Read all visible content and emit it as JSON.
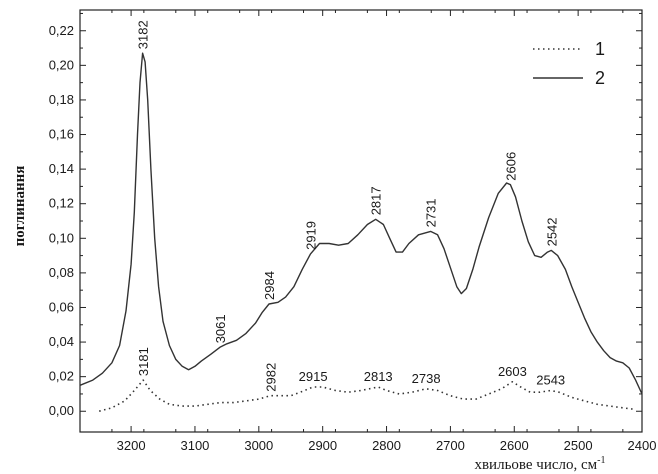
{
  "chart_data": {
    "type": "line",
    "xlabel": "хвильове число, см",
    "xlabel_sup": "-1",
    "ylabel": "поглинання",
    "xlim": [
      3280,
      2400
    ],
    "ylim": [
      -0.012,
      0.232
    ],
    "x_ticks": [
      3200,
      3100,
      3000,
      2900,
      2800,
      2700,
      2600,
      2500,
      2400
    ],
    "y_ticks": [
      0.0,
      0.02,
      0.04,
      0.06,
      0.08,
      0.1,
      0.12,
      0.14,
      0.16,
      0.18,
      0.2,
      0.22
    ],
    "y_tick_labels": [
      "0,00",
      "0,02",
      "0,04",
      "0,06",
      "0,08",
      "0,10",
      "0,12",
      "0,14",
      "0,16",
      "0,18",
      "0,20",
      "0,22"
    ],
    "grid": false,
    "legend_position": "top-right",
    "series": [
      {
        "name": "1",
        "style": "dotted",
        "color": "#333333",
        "points": [
          [
            3250,
            0.0
          ],
          [
            3230,
            0.002
          ],
          [
            3210,
            0.006
          ],
          [
            3195,
            0.012
          ],
          [
            3181,
            0.018
          ],
          [
            3170,
            0.012
          ],
          [
            3155,
            0.007
          ],
          [
            3140,
            0.004
          ],
          [
            3120,
            0.003
          ],
          [
            3100,
            0.003
          ],
          [
            3080,
            0.004
          ],
          [
            3060,
            0.005
          ],
          [
            3040,
            0.005
          ],
          [
            3020,
            0.006
          ],
          [
            3000,
            0.007
          ],
          [
            2982,
            0.009
          ],
          [
            2965,
            0.009
          ],
          [
            2950,
            0.009
          ],
          [
            2935,
            0.011
          ],
          [
            2915,
            0.014
          ],
          [
            2900,
            0.014
          ],
          [
            2880,
            0.012
          ],
          [
            2860,
            0.011
          ],
          [
            2840,
            0.012
          ],
          [
            2813,
            0.014
          ],
          [
            2800,
            0.012
          ],
          [
            2780,
            0.01
          ],
          [
            2760,
            0.011
          ],
          [
            2738,
            0.013
          ],
          [
            2720,
            0.012
          ],
          [
            2700,
            0.009
          ],
          [
            2680,
            0.007
          ],
          [
            2660,
            0.007
          ],
          [
            2640,
            0.01
          ],
          [
            2620,
            0.013
          ],
          [
            2603,
            0.017
          ],
          [
            2590,
            0.014
          ],
          [
            2575,
            0.011
          ],
          [
            2560,
            0.011
          ],
          [
            2543,
            0.012
          ],
          [
            2530,
            0.011
          ],
          [
            2510,
            0.008
          ],
          [
            2490,
            0.006
          ],
          [
            2470,
            0.004
          ],
          [
            2450,
            0.003
          ],
          [
            2430,
            0.002
          ],
          [
            2410,
            0.001
          ]
        ]
      },
      {
        "name": "2",
        "style": "solid",
        "color": "#333333",
        "points": [
          [
            3280,
            0.015
          ],
          [
            3260,
            0.018
          ],
          [
            3245,
            0.022
          ],
          [
            3230,
            0.028
          ],
          [
            3218,
            0.038
          ],
          [
            3208,
            0.058
          ],
          [
            3200,
            0.085
          ],
          [
            3195,
            0.115
          ],
          [
            3190,
            0.16
          ],
          [
            3186,
            0.19
          ],
          [
            3182,
            0.207
          ],
          [
            3178,
            0.202
          ],
          [
            3174,
            0.18
          ],
          [
            3169,
            0.14
          ],
          [
            3163,
            0.1
          ],
          [
            3157,
            0.072
          ],
          [
            3150,
            0.052
          ],
          [
            3140,
            0.038
          ],
          [
            3130,
            0.03
          ],
          [
            3120,
            0.026
          ],
          [
            3110,
            0.024
          ],
          [
            3100,
            0.026
          ],
          [
            3090,
            0.029
          ],
          [
            3075,
            0.033
          ],
          [
            3061,
            0.037
          ],
          [
            3050,
            0.039
          ],
          [
            3035,
            0.041
          ],
          [
            3020,
            0.045
          ],
          [
            3005,
            0.051
          ],
          [
            2995,
            0.057
          ],
          [
            2984,
            0.062
          ],
          [
            2970,
            0.063
          ],
          [
            2958,
            0.066
          ],
          [
            2945,
            0.072
          ],
          [
            2932,
            0.082
          ],
          [
            2919,
            0.091
          ],
          [
            2905,
            0.097
          ],
          [
            2890,
            0.097
          ],
          [
            2875,
            0.096
          ],
          [
            2860,
            0.097
          ],
          [
            2845,
            0.102
          ],
          [
            2830,
            0.108
          ],
          [
            2817,
            0.111
          ],
          [
            2805,
            0.108
          ],
          [
            2795,
            0.1
          ],
          [
            2785,
            0.092
          ],
          [
            2775,
            0.092
          ],
          [
            2765,
            0.097
          ],
          [
            2750,
            0.102
          ],
          [
            2731,
            0.104
          ],
          [
            2720,
            0.102
          ],
          [
            2710,
            0.094
          ],
          [
            2700,
            0.083
          ],
          [
            2690,
            0.072
          ],
          [
            2683,
            0.068
          ],
          [
            2675,
            0.071
          ],
          [
            2665,
            0.082
          ],
          [
            2655,
            0.095
          ],
          [
            2640,
            0.112
          ],
          [
            2625,
            0.126
          ],
          [
            2612,
            0.132
          ],
          [
            2606,
            0.131
          ],
          [
            2598,
            0.124
          ],
          [
            2588,
            0.11
          ],
          [
            2578,
            0.098
          ],
          [
            2568,
            0.09
          ],
          [
            2558,
            0.089
          ],
          [
            2548,
            0.092
          ],
          [
            2542,
            0.093
          ],
          [
            2532,
            0.09
          ],
          [
            2520,
            0.082
          ],
          [
            2510,
            0.072
          ],
          [
            2500,
            0.063
          ],
          [
            2490,
            0.054
          ],
          [
            2480,
            0.046
          ],
          [
            2470,
            0.04
          ],
          [
            2460,
            0.035
          ],
          [
            2450,
            0.031
          ],
          [
            2440,
            0.029
          ],
          [
            2430,
            0.028
          ],
          [
            2420,
            0.025
          ],
          [
            2410,
            0.018
          ],
          [
            2400,
            0.01
          ]
        ]
      }
    ],
    "annotations": [
      {
        "text": "3182",
        "x": 3182,
        "y": 0.207,
        "rotate": true
      },
      {
        "text": "3061",
        "x": 3061,
        "y": 0.037,
        "rotate": true
      },
      {
        "text": "2984",
        "x": 2984,
        "y": 0.062,
        "rotate": true
      },
      {
        "text": "2919",
        "x": 2919,
        "y": 0.091,
        "rotate": true
      },
      {
        "text": "2817",
        "x": 2817,
        "y": 0.111,
        "rotate": true
      },
      {
        "text": "2731",
        "x": 2731,
        "y": 0.104,
        "rotate": true
      },
      {
        "text": "2606",
        "x": 2606,
        "y": 0.131,
        "rotate": true
      },
      {
        "text": "2542",
        "x": 2542,
        "y": 0.093,
        "rotate": true
      },
      {
        "text": "3181",
        "x": 3181,
        "y": 0.018,
        "rotate": true
      },
      {
        "text": "2982",
        "x": 2982,
        "y": 0.009,
        "rotate": true
      },
      {
        "text": "2915",
        "x": 2915,
        "y": 0.014,
        "rotate": false
      },
      {
        "text": "2813",
        "x": 2813,
        "y": 0.014,
        "rotate": false
      },
      {
        "text": "2738",
        "x": 2738,
        "y": 0.013,
        "rotate": false
      },
      {
        "text": "2603",
        "x": 2603,
        "y": 0.017,
        "rotate": false
      },
      {
        "text": "2543",
        "x": 2543,
        "y": 0.012,
        "rotate": false
      }
    ]
  }
}
